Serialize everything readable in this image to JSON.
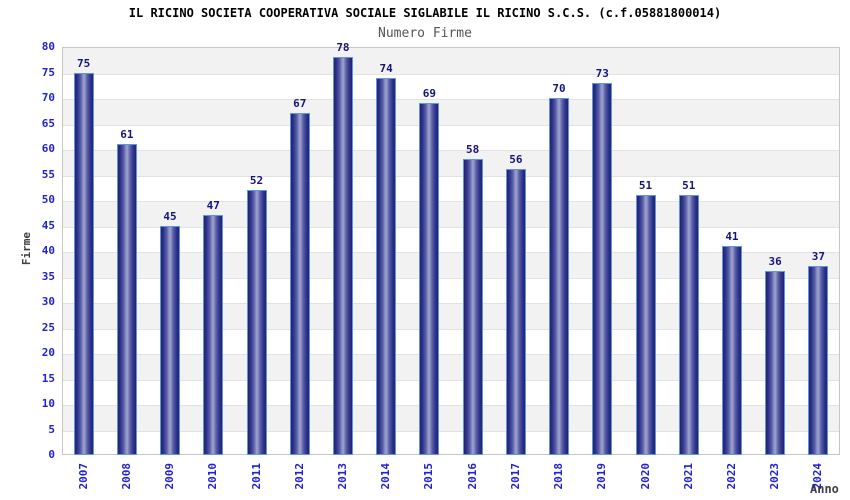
{
  "chart_data": {
    "type": "bar",
    "title": "IL RICINO SOCIETA COOPERATIVA SOCIALE SIGLABILE IL RICINO S.C.S. (c.f.05881800014)",
    "subtitle": "Numero Firme",
    "xlabel": "Anno",
    "ylabel": "Firme",
    "categories": [
      "2007",
      "2008",
      "2009",
      "2010",
      "2011",
      "2012",
      "2013",
      "2014",
      "2015",
      "2016",
      "2017",
      "2018",
      "2019",
      "2020",
      "2021",
      "2022",
      "2023",
      "2024"
    ],
    "values": [
      75,
      61,
      45,
      47,
      52,
      67,
      78,
      74,
      69,
      58,
      56,
      70,
      73,
      51,
      51,
      41,
      36,
      37
    ],
    "ylim": [
      0,
      80
    ],
    "ytick_step": 5,
    "grid": "alternating-horizontal-bands",
    "legend_position": "none",
    "colors": {
      "bar_edge_dark": "#23246b",
      "bar_mid": "#2e3190",
      "bar_center_light": "#9aa0cc",
      "bar_outline": "#5e97dd",
      "value_label": "#16167a",
      "tick_label": "#2222cc",
      "axis_title": "#404040",
      "band_gray": "#f2f2f2",
      "band_white": "#ffffff",
      "gridline": "#e2e2e2",
      "plot_border": "#c6c6c6",
      "title": "#000000",
      "subtitle": "#555555"
    }
  }
}
